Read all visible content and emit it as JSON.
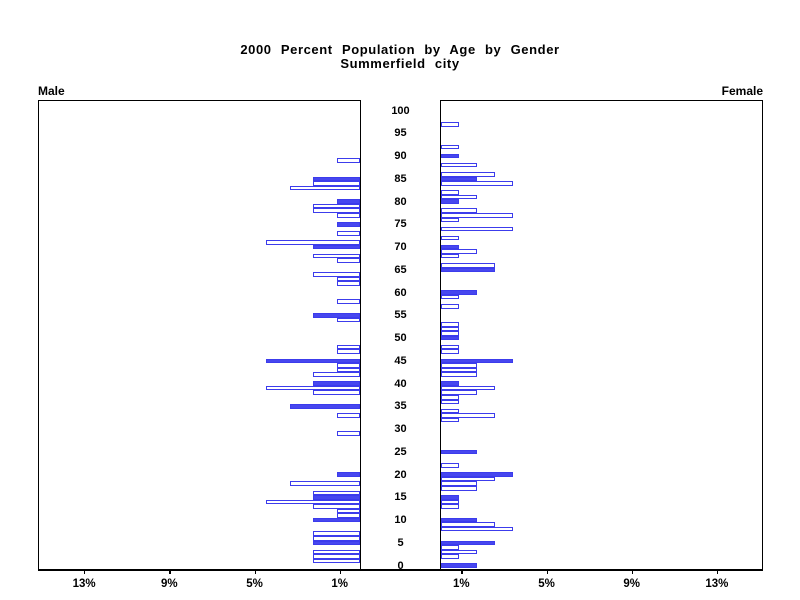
{
  "title": {
    "line1": "2000 Percent Population by Age by Gender",
    "line2": "Summerfield city"
  },
  "panel_labels": {
    "left": "Male",
    "right": "Female"
  },
  "colors": {
    "bar_blue": "#4747ef",
    "bar_outline": "#3c3cec",
    "axis": "#000000"
  },
  "chart_data": {
    "type": "bar",
    "variant": "population-pyramid",
    "title": "2000 Percent Population by Age by Gender",
    "subtitle": "Summerfield city",
    "left_series_label": "Male",
    "right_series_label": "Female",
    "age_axis": {
      "min": 0,
      "max": 100,
      "tick_interval": 5,
      "tick_labels": [
        100,
        95,
        90,
        85,
        80,
        75,
        70,
        65,
        60,
        55,
        50,
        45,
        40,
        35,
        30,
        25,
        20,
        15,
        10,
        5,
        0
      ]
    },
    "pct_axis": {
      "unit": "%",
      "max_extent": 15.2,
      "mirrored": true,
      "ticks": [
        {
          "value": 1,
          "label": "1%"
        },
        {
          "value": 5,
          "label": "5%"
        },
        {
          "value": 9,
          "label": "9%"
        },
        {
          "value": 13,
          "label": "13%"
        }
      ]
    },
    "legend": "bars at ages divisible by 5 are solid blue; other single-year ages are hollow outlines",
    "series": [
      {
        "name": "Male",
        "points": [
          {
            "age": 89,
            "pct": 1.1,
            "filled": false
          },
          {
            "age": 85,
            "pct": 2.2,
            "filled": true
          },
          {
            "age": 84,
            "pct": 2.2,
            "filled": false
          },
          {
            "age": 83,
            "pct": 3.3,
            "filled": false
          },
          {
            "age": 80,
            "pct": 1.1,
            "filled": true
          },
          {
            "age": 79,
            "pct": 2.2,
            "filled": false
          },
          {
            "age": 78,
            "pct": 2.2,
            "filled": false
          },
          {
            "age": 77,
            "pct": 1.1,
            "filled": false
          },
          {
            "age": 75,
            "pct": 1.1,
            "filled": true
          },
          {
            "age": 73,
            "pct": 1.1,
            "filled": false
          },
          {
            "age": 71,
            "pct": 4.4,
            "filled": false
          },
          {
            "age": 70,
            "pct": 2.2,
            "filled": true
          },
          {
            "age": 68,
            "pct": 2.2,
            "filled": false
          },
          {
            "age": 67,
            "pct": 1.1,
            "filled": false
          },
          {
            "age": 64,
            "pct": 2.2,
            "filled": false
          },
          {
            "age": 63,
            "pct": 1.1,
            "filled": false
          },
          {
            "age": 62,
            "pct": 1.1,
            "filled": false
          },
          {
            "age": 58,
            "pct": 1.1,
            "filled": false
          },
          {
            "age": 55,
            "pct": 2.2,
            "filled": true
          },
          {
            "age": 54,
            "pct": 1.1,
            "filled": false
          },
          {
            "age": 48,
            "pct": 1.1,
            "filled": false
          },
          {
            "age": 47,
            "pct": 1.1,
            "filled": false
          },
          {
            "age": 45,
            "pct": 4.4,
            "filled": true
          },
          {
            "age": 44,
            "pct": 1.1,
            "filled": false
          },
          {
            "age": 43,
            "pct": 1.1,
            "filled": false
          },
          {
            "age": 42,
            "pct": 2.2,
            "filled": false
          },
          {
            "age": 40,
            "pct": 2.2,
            "filled": true
          },
          {
            "age": 39,
            "pct": 4.4,
            "filled": false
          },
          {
            "age": 38,
            "pct": 2.2,
            "filled": false
          },
          {
            "age": 35,
            "pct": 3.3,
            "filled": true
          },
          {
            "age": 33,
            "pct": 1.1,
            "filled": false
          },
          {
            "age": 29,
            "pct": 1.1,
            "filled": false
          },
          {
            "age": 20,
            "pct": 1.1,
            "filled": true
          },
          {
            "age": 18,
            "pct": 3.3,
            "filled": false
          },
          {
            "age": 16,
            "pct": 2.2,
            "filled": false
          },
          {
            "age": 15,
            "pct": 2.2,
            "filled": true
          },
          {
            "age": 14,
            "pct": 4.4,
            "filled": false
          },
          {
            "age": 13,
            "pct": 2.2,
            "filled": false
          },
          {
            "age": 12,
            "pct": 1.1,
            "filled": false
          },
          {
            "age": 11,
            "pct": 1.1,
            "filled": false
          },
          {
            "age": 10,
            "pct": 2.2,
            "filled": true
          },
          {
            "age": 7,
            "pct": 2.2,
            "filled": false
          },
          {
            "age": 6,
            "pct": 2.2,
            "filled": false
          },
          {
            "age": 5,
            "pct": 2.2,
            "filled": true
          },
          {
            "age": 3,
            "pct": 2.2,
            "filled": false
          },
          {
            "age": 2,
            "pct": 2.2,
            "filled": false
          },
          {
            "age": 1,
            "pct": 2.2,
            "filled": false
          }
        ]
      },
      {
        "name": "Female",
        "points": [
          {
            "age": 97,
            "pct": 0.85,
            "filled": false
          },
          {
            "age": 92,
            "pct": 0.85,
            "filled": false
          },
          {
            "age": 90,
            "pct": 0.85,
            "filled": true
          },
          {
            "age": 88,
            "pct": 1.7,
            "filled": false
          },
          {
            "age": 86,
            "pct": 2.55,
            "filled": false
          },
          {
            "age": 85,
            "pct": 1.7,
            "filled": true
          },
          {
            "age": 84,
            "pct": 3.4,
            "filled": false
          },
          {
            "age": 82,
            "pct": 0.85,
            "filled": false
          },
          {
            "age": 81,
            "pct": 1.7,
            "filled": false
          },
          {
            "age": 80,
            "pct": 0.85,
            "filled": true
          },
          {
            "age": 78,
            "pct": 1.7,
            "filled": false
          },
          {
            "age": 77,
            "pct": 3.4,
            "filled": false
          },
          {
            "age": 76,
            "pct": 0.85,
            "filled": false
          },
          {
            "age": 74,
            "pct": 3.4,
            "filled": false
          },
          {
            "age": 72,
            "pct": 0.85,
            "filled": false
          },
          {
            "age": 70,
            "pct": 0.85,
            "filled": true
          },
          {
            "age": 69,
            "pct": 1.7,
            "filled": false
          },
          {
            "age": 68,
            "pct": 0.85,
            "filled": false
          },
          {
            "age": 66,
            "pct": 2.55,
            "filled": false
          },
          {
            "age": 65,
            "pct": 2.55,
            "filled": true
          },
          {
            "age": 60,
            "pct": 1.7,
            "filled": true
          },
          {
            "age": 59,
            "pct": 0.85,
            "filled": false
          },
          {
            "age": 57,
            "pct": 0.85,
            "filled": false
          },
          {
            "age": 53,
            "pct": 0.85,
            "filled": false
          },
          {
            "age": 52,
            "pct": 0.85,
            "filled": false
          },
          {
            "age": 51,
            "pct": 0.85,
            "filled": false
          },
          {
            "age": 50,
            "pct": 0.85,
            "filled": true
          },
          {
            "age": 48,
            "pct": 0.85,
            "filled": false
          },
          {
            "age": 47,
            "pct": 0.85,
            "filled": false
          },
          {
            "age": 45,
            "pct": 3.4,
            "filled": true
          },
          {
            "age": 44,
            "pct": 1.7,
            "filled": false
          },
          {
            "age": 43,
            "pct": 1.7,
            "filled": false
          },
          {
            "age": 42,
            "pct": 1.7,
            "filled": false
          },
          {
            "age": 40,
            "pct": 0.85,
            "filled": true
          },
          {
            "age": 39,
            "pct": 2.55,
            "filled": false
          },
          {
            "age": 38,
            "pct": 1.7,
            "filled": false
          },
          {
            "age": 37,
            "pct": 0.85,
            "filled": false
          },
          {
            "age": 36,
            "pct": 0.85,
            "filled": false
          },
          {
            "age": 34,
            "pct": 0.85,
            "filled": false
          },
          {
            "age": 33,
            "pct": 2.55,
            "filled": false
          },
          {
            "age": 32,
            "pct": 0.85,
            "filled": false
          },
          {
            "age": 25,
            "pct": 1.7,
            "filled": true
          },
          {
            "age": 22,
            "pct": 0.85,
            "filled": false
          },
          {
            "age": 20,
            "pct": 3.4,
            "filled": true
          },
          {
            "age": 19,
            "pct": 2.55,
            "filled": false
          },
          {
            "age": 18,
            "pct": 1.7,
            "filled": false
          },
          {
            "age": 17,
            "pct": 1.7,
            "filled": false
          },
          {
            "age": 15,
            "pct": 0.85,
            "filled": true
          },
          {
            "age": 14,
            "pct": 0.85,
            "filled": false
          },
          {
            "age": 13,
            "pct": 0.85,
            "filled": false
          },
          {
            "age": 10,
            "pct": 1.7,
            "filled": true
          },
          {
            "age": 9,
            "pct": 2.55,
            "filled": false
          },
          {
            "age": 8,
            "pct": 3.4,
            "filled": false
          },
          {
            "age": 5,
            "pct": 2.55,
            "filled": true
          },
          {
            "age": 4,
            "pct": 0.85,
            "filled": false
          },
          {
            "age": 3,
            "pct": 1.7,
            "filled": false
          },
          {
            "age": 2,
            "pct": 0.85,
            "filled": false
          },
          {
            "age": 0,
            "pct": 1.7,
            "filled": true
          }
        ]
      }
    ]
  }
}
